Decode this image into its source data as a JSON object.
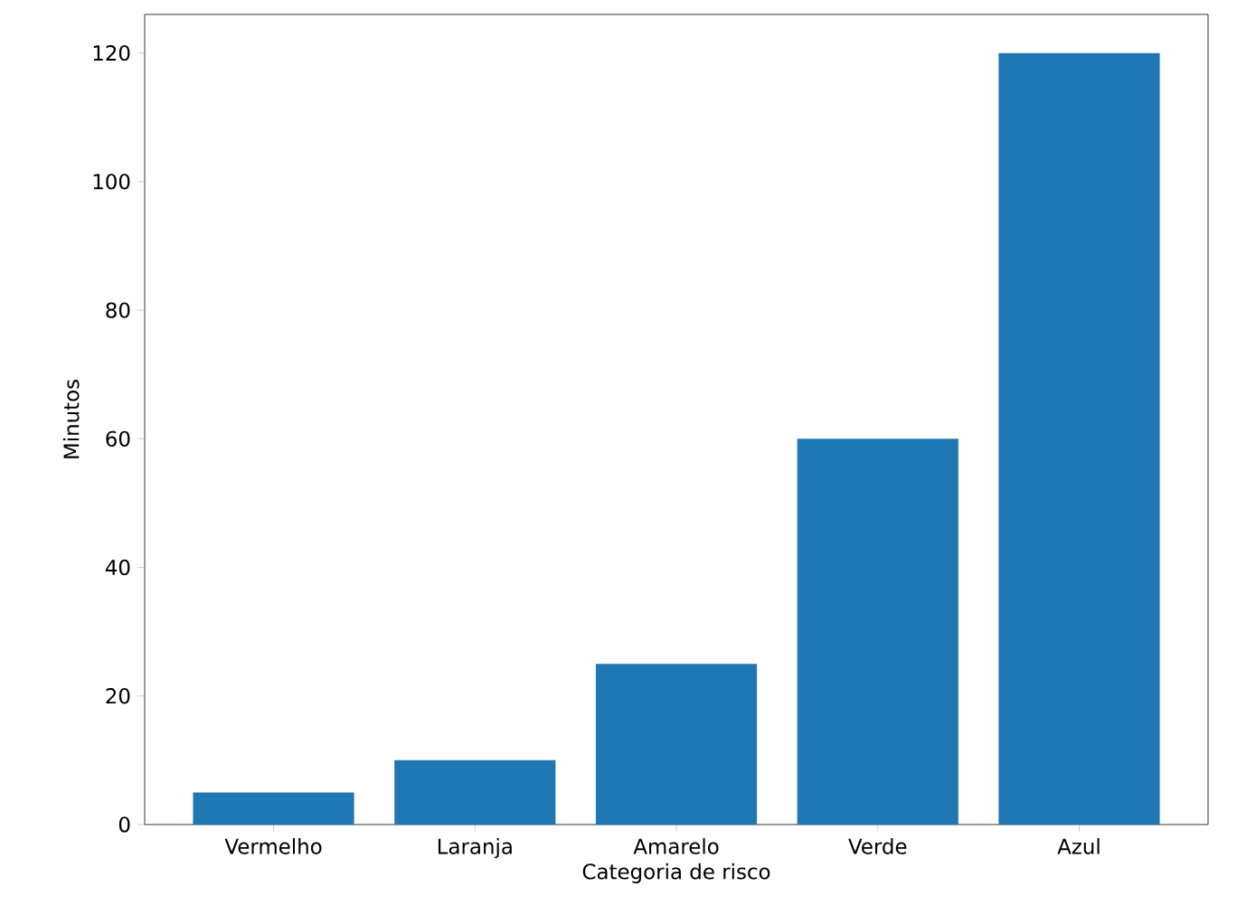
{
  "chart_data": {
    "type": "bar",
    "xlabel": "Categoria de risco",
    "ylabel": "Minutos",
    "categories": [
      "Vermelho",
      "Laranja",
      "Amarelo",
      "Verde",
      "Azul"
    ],
    "values": [
      5,
      10,
      25,
      60,
      120
    ],
    "color": "#1f77b4",
    "ylim": [
      0,
      126
    ],
    "yticks": [
      0,
      20,
      40,
      60,
      80,
      100,
      120
    ],
    "grid": false
  }
}
